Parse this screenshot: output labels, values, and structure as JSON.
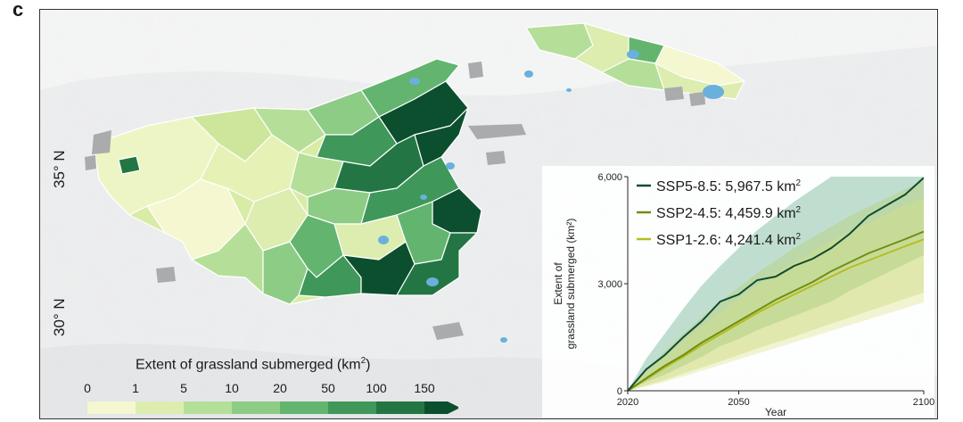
{
  "panel_label": "c",
  "map": {
    "lat_labels": [
      "35° N",
      "30° N"
    ],
    "colors": {
      "background": "#e9ebec",
      "water": "#6ab0dd",
      "no_data": "#a9abad"
    }
  },
  "legend": {
    "title_base": "Extent of grassland submerged (km",
    "title_sup": "2",
    "title_close": ")",
    "ticks": [
      "0",
      "1",
      "5",
      "10",
      "20",
      "50",
      "100",
      "150"
    ],
    "colors": [
      "#f4f7cf",
      "#dcedaf",
      "#b5df98",
      "#8dcc85",
      "#63b46f",
      "#3f975a",
      "#237643",
      "#0c4f2e"
    ]
  },
  "chart_data": {
    "type": "line",
    "xlabel": "Year",
    "ylabel": "Extent of grassland submerged (km²)",
    "ylabel_lines": [
      "Extent of",
      "grassland submerged (km²)"
    ],
    "xlim": [
      2020,
      2100
    ],
    "ylim": [
      0,
      6000
    ],
    "x_ticks": [
      2020,
      2050,
      2100
    ],
    "y_ticks": [
      0,
      3000,
      6000
    ],
    "y_tick_labels": [
      "0",
      "3,000",
      "6,000"
    ],
    "series": [
      {
        "name": "SSP5-8.5",
        "label": "SSP5-8.5: 5,967.5 km",
        "color": "#0f4c2e",
        "band_color": "#4ea37a",
        "x": [
          2020,
          2025,
          2030,
          2035,
          2040,
          2045,
          2050,
          2055,
          2060,
          2065,
          2070,
          2075,
          2080,
          2085,
          2090,
          2095,
          2100
        ],
        "y": [
          0,
          600,
          1000,
          1500,
          1950,
          2500,
          2700,
          3100,
          3200,
          3500,
          3700,
          4000,
          4400,
          4900,
          5200,
          5500,
          5967.5
        ],
        "lower": [
          0,
          250,
          450,
          700,
          950,
          1250,
          1450,
          1700,
          1900,
          2100,
          2300,
          2500,
          2800,
          3050,
          3300,
          3550,
          3800
        ],
        "upper": [
          0,
          900,
          1600,
          2300,
          2950,
          3500,
          4000,
          4500,
          4900,
          5300,
          5650,
          6000,
          6350,
          6700,
          7000,
          7300,
          7600
        ]
      },
      {
        "name": "SSP2-4.5",
        "label": "SSP2-4.5: 4,459.9 km",
        "color": "#6f8f12",
        "band_color": "#b4cc5e",
        "x": [
          2020,
          2025,
          2030,
          2035,
          2040,
          2045,
          2050,
          2055,
          2060,
          2065,
          2070,
          2075,
          2080,
          2085,
          2090,
          2095,
          2100
        ],
        "y": [
          0,
          350,
          700,
          1000,
          1350,
          1650,
          1950,
          2250,
          2550,
          2800,
          3050,
          3350,
          3600,
          3850,
          4050,
          4250,
          4459.9
        ],
        "lower": [
          0,
          150,
          300,
          480,
          650,
          820,
          1000,
          1180,
          1350,
          1520,
          1700,
          1880,
          2050,
          2230,
          2400,
          2580,
          2750
        ],
        "upper": [
          0,
          600,
          1100,
          1600,
          2050,
          2500,
          2900,
          3300,
          3650,
          4000,
          4300,
          4600,
          4900,
          5150,
          5400,
          5650,
          5900
        ]
      },
      {
        "name": "SSP1-2.6",
        "label": "SSP1-2.6: 4,241.4 km",
        "color": "#b5bd1f",
        "band_color": "#dce27e",
        "x": [
          2020,
          2025,
          2030,
          2035,
          2040,
          2045,
          2050,
          2055,
          2060,
          2065,
          2070,
          2075,
          2080,
          2085,
          2090,
          2095,
          2100
        ],
        "y": [
          0,
          320,
          650,
          950,
          1280,
          1580,
          1880,
          2180,
          2450,
          2700,
          2950,
          3200,
          3450,
          3650,
          3850,
          4050,
          4241.4
        ],
        "lower": [
          0,
          120,
          250,
          400,
          560,
          720,
          880,
          1040,
          1200,
          1360,
          1520,
          1680,
          1840,
          2000,
          2160,
          2320,
          2480
        ],
        "upper": [
          0,
          500,
          950,
          1400,
          1800,
          2200,
          2600,
          2950,
          3300,
          3600,
          3900,
          4200,
          4450,
          4700,
          4950,
          5200,
          5400
        ]
      }
    ],
    "unit_sup": "2"
  }
}
